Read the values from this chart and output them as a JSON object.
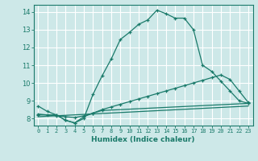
{
  "xlabel": "Humidex (Indice chaleur)",
  "bg_color": "#cde8e8",
  "grid_color": "#ffffff",
  "line_color": "#1a7a6a",
  "xlim": [
    -0.5,
    23.5
  ],
  "ylim": [
    7.6,
    14.4
  ],
  "xtick_vals": [
    0,
    1,
    2,
    3,
    4,
    5,
    6,
    7,
    8,
    9,
    10,
    11,
    12,
    13,
    14,
    15,
    16,
    17,
    18,
    19,
    20,
    21,
    22,
    23
  ],
  "xtick_labels": [
    "0",
    "1",
    "2",
    "3",
    "4",
    "5",
    "6",
    "7",
    "8",
    "9",
    "10",
    "11",
    "12",
    "13",
    "14",
    "15",
    "16",
    "17",
    "18",
    "19",
    "20",
    "21",
    "22",
    "23"
  ],
  "ytick_vals": [
    8,
    9,
    10,
    11,
    12,
    13,
    14
  ],
  "ytick_labels": [
    "8",
    "9",
    "10",
    "11",
    "12",
    "13",
    "14"
  ],
  "curve1_x": [
    0,
    1,
    2,
    3,
    4,
    5,
    6,
    7,
    8,
    9,
    10,
    11,
    12,
    13,
    14,
    15,
    16,
    17,
    18,
    19,
    20,
    21,
    22,
    23
  ],
  "curve1_y": [
    8.7,
    8.4,
    8.2,
    7.9,
    7.75,
    8.0,
    9.35,
    10.4,
    11.35,
    12.45,
    12.85,
    13.3,
    13.55,
    14.1,
    13.9,
    13.65,
    13.65,
    13.0,
    11.0,
    10.65,
    10.1,
    9.55,
    9.0,
    8.85
  ],
  "curve2_x": [
    0,
    1,
    2,
    3,
    4,
    5,
    6,
    7,
    8,
    9,
    10,
    11,
    12,
    13,
    14,
    15,
    16,
    17,
    18,
    19,
    20,
    21,
    22,
    23
  ],
  "curve2_y": [
    8.25,
    8.2,
    8.15,
    8.1,
    8.05,
    8.15,
    8.3,
    8.5,
    8.65,
    8.8,
    8.95,
    9.1,
    9.25,
    9.4,
    9.55,
    9.7,
    9.85,
    10.0,
    10.15,
    10.3,
    10.45,
    10.2,
    9.55,
    8.9
  ],
  "curve3_x": [
    0,
    23
  ],
  "curve3_y": [
    8.1,
    8.7
  ],
  "curve4_x": [
    0,
    2,
    3,
    4,
    5,
    6,
    7,
    23
  ],
  "curve4_y": [
    8.2,
    8.2,
    7.9,
    7.75,
    8.1,
    8.3,
    8.45,
    8.85
  ]
}
